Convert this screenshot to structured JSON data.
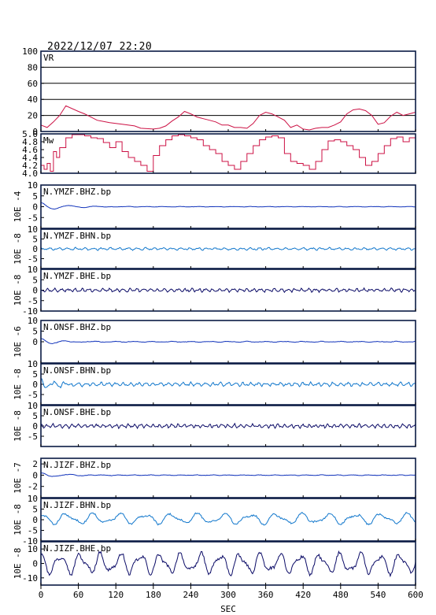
{
  "header": {
    "timestamp": "2022/12/07 22:20"
  },
  "chart_data": {
    "type": "line",
    "xlabel": "SEC",
    "xlim": [
      0,
      600
    ],
    "x_ticks": [
      "0",
      "60",
      "120",
      "180",
      "240",
      "300",
      "360",
      "420",
      "480",
      "540",
      "600"
    ],
    "colors": {
      "vr": "#cc1144",
      "mw": "#cc1144",
      "dark": "#0a0a66",
      "blue": "#1133bb",
      "light": "#1177cc",
      "frame": "#0a1a44",
      "grid": "#000000"
    },
    "panels": [
      {
        "id": "vr",
        "label": "VR",
        "kind": "vr",
        "ylim": [
          0,
          100
        ],
        "yticks": [
          "0",
          "20",
          "40",
          "60",
          "80",
          "100"
        ],
        "grid": true,
        "x": [
          0,
          10,
          20,
          30,
          40,
          60,
          70,
          90,
          110,
          130,
          150,
          160,
          180,
          190,
          200,
          210,
          220,
          230,
          240,
          250,
          260,
          270,
          280,
          290,
          300,
          310,
          320,
          330,
          340,
          350,
          360,
          370,
          380,
          390,
          400,
          410,
          420,
          430,
          440,
          450,
          460,
          470,
          480,
          490,
          500,
          510,
          520,
          530,
          540,
          550,
          560,
          570,
          580,
          590,
          600
        ],
        "y": [
          8,
          5,
          12,
          20,
          32,
          25,
          22,
          14,
          11,
          9,
          7,
          4,
          3,
          4,
          7,
          13,
          18,
          25,
          22,
          18,
          16,
          14,
          12,
          8,
          8,
          5,
          5,
          4,
          10,
          20,
          24,
          22,
          18,
          14,
          5,
          8,
          3,
          2,
          4,
          5,
          5,
          8,
          12,
          22,
          27,
          28,
          26,
          20,
          9,
          11,
          19,
          24,
          20,
          22,
          24
        ]
      },
      {
        "id": "mw",
        "label": "Mw",
        "kind": "mw",
        "ylim": [
          4.0,
          5.0
        ],
        "yticks": [
          "4.0",
          "4.2",
          "4.4",
          "4.6",
          "4.8",
          "5.0"
        ],
        "grid": false,
        "x": [
          0,
          5,
          10,
          15,
          20,
          25,
          30,
          40,
          50,
          60,
          70,
          80,
          90,
          100,
          110,
          120,
          130,
          140,
          150,
          160,
          170,
          180,
          190,
          200,
          210,
          220,
          230,
          240,
          250,
          260,
          270,
          280,
          290,
          300,
          310,
          320,
          330,
          340,
          350,
          360,
          370,
          380,
          390,
          400,
          410,
          420,
          430,
          440,
          450,
          460,
          470,
          480,
          490,
          500,
          510,
          520,
          530,
          540,
          550,
          560,
          570,
          580,
          590,
          600
        ],
        "y": [
          4.2,
          4.1,
          4.25,
          4.05,
          4.55,
          4.4,
          4.65,
          4.9,
          4.98,
          4.98,
          4.95,
          4.9,
          4.88,
          4.78,
          4.65,
          4.8,
          4.55,
          4.4,
          4.3,
          4.2,
          4.05,
          4.45,
          4.7,
          4.85,
          4.95,
          4.98,
          4.95,
          4.9,
          4.85,
          4.7,
          4.6,
          4.5,
          4.3,
          4.2,
          4.1,
          4.3,
          4.5,
          4.7,
          4.85,
          4.92,
          4.95,
          4.9,
          4.5,
          4.3,
          4.25,
          4.2,
          4.1,
          4.3,
          4.6,
          4.82,
          4.85,
          4.8,
          4.7,
          4.6,
          4.4,
          4.2,
          4.3,
          4.5,
          4.7,
          4.88,
          4.92,
          4.8,
          4.9,
          4.88
        ]
      },
      {
        "id": "ymzf-bhz",
        "label": "N.YMZF.BHZ.bp",
        "kind": "wave",
        "ylabel": "10E -4",
        "ylim": [
          -10,
          10
        ],
        "yticks": [
          "-5",
          "0",
          "5",
          "10"
        ],
        "color": "blue",
        "wave": {
          "baseline": 0,
          "amp": 0.12,
          "period": 28,
          "noise": 0.05,
          "seed": 11,
          "onset": {
            "amp": 1.8,
            "decay": 40,
            "period": 45
          }
        }
      },
      {
        "id": "ymzf-bhn",
        "label": "N.YMZF.BHN.bp",
        "kind": "wave",
        "ylabel": "10E -8",
        "ylim": [
          -10,
          10
        ],
        "yticks": [
          "-5",
          "0",
          "5",
          "10"
        ],
        "color": "light",
        "wave": {
          "baseline": 0,
          "amp": 0.6,
          "period": 14,
          "noise": 0.25,
          "seed": 23
        }
      },
      {
        "id": "ymzf-bhe",
        "label": "N.YMZF.BHE.bp",
        "kind": "wave",
        "ylabel": "10E -8",
        "ylim": [
          -10,
          10
        ],
        "yticks": [
          "-10",
          "-5",
          "0",
          "5",
          "10"
        ],
        "color": "dark",
        "wave": {
          "baseline": 0,
          "amp": 0.8,
          "period": 11,
          "noise": 0.35,
          "seed": 37
        }
      },
      {
        "id": "onsf-bhz",
        "label": "N.ONSF.BHZ.bp",
        "kind": "wave",
        "ylabel": "10E -6",
        "ylim": [
          -10,
          10
        ],
        "yticks": [
          "0",
          "5",
          "10"
        ],
        "color": "blue",
        "wave": {
          "baseline": 0,
          "amp": 0.2,
          "period": 30,
          "noise": 0.1,
          "seed": 41,
          "onset": {
            "amp": 1.4,
            "decay": 35,
            "period": 40
          }
        }
      },
      {
        "id": "onsf-bhn",
        "label": "N.ONSF.BHN.bp",
        "kind": "wave",
        "ylabel": "10E -8",
        "ylim": [
          -10,
          10
        ],
        "yticks": [
          "-5",
          "0",
          "5",
          "10"
        ],
        "color": "light",
        "wave": {
          "baseline": 0,
          "amp": 0.9,
          "period": 12,
          "noise": 0.35,
          "seed": 53,
          "onset": {
            "amp": 2.2,
            "decay": 30,
            "period": 20
          }
        }
      },
      {
        "id": "onsf-bhe",
        "label": "N.ONSF.BHE.bp",
        "kind": "wave",
        "ylabel": "10E -8",
        "ylim": [
          -10,
          10
        ],
        "yticks": [
          "-5",
          "0",
          "5",
          "10"
        ],
        "color": "dark",
        "wave": {
          "baseline": 0,
          "amp": 0.9,
          "period": 10,
          "noise": 0.4,
          "seed": 61
        }
      },
      {
        "id": "jizf-bhz",
        "label": "N.JIZF.BHZ.bp",
        "kind": "wave",
        "ylabel": "10E -7",
        "ylim": [
          -4,
          3
        ],
        "yticks": [
          "-2",
          "0",
          "2"
        ],
        "color": "blue",
        "wave": {
          "baseline": 0,
          "amp": 0.06,
          "period": 25,
          "noise": 0.03,
          "seed": 71,
          "onset": {
            "amp": 0.4,
            "decay": 40,
            "period": 45
          }
        }
      },
      {
        "id": "jizf-bhn",
        "label": "N.JIZF.BHN.bp",
        "kind": "wave",
        "ylabel": "10E -8",
        "ylim": [
          -10,
          10
        ],
        "yticks": [
          "-10",
          "-5",
          "0",
          "5",
          "10"
        ],
        "color": "light",
        "wave": {
          "baseline": 0.5,
          "amp": 2.8,
          "period": 42,
          "noise": 0.4,
          "seed": 83
        }
      },
      {
        "id": "jizf-bhe",
        "label": "N.JIZF.BHE.bp",
        "kind": "wave",
        "ylabel": "10E -8",
        "ylim": [
          -15,
          15
        ],
        "yticks": [
          "-10",
          "0",
          "10"
        ],
        "color": "dark",
        "wave": {
          "baseline": 0,
          "amp": 8.0,
          "period": 32,
          "noise": 1.0,
          "seed": 97
        }
      }
    ]
  }
}
